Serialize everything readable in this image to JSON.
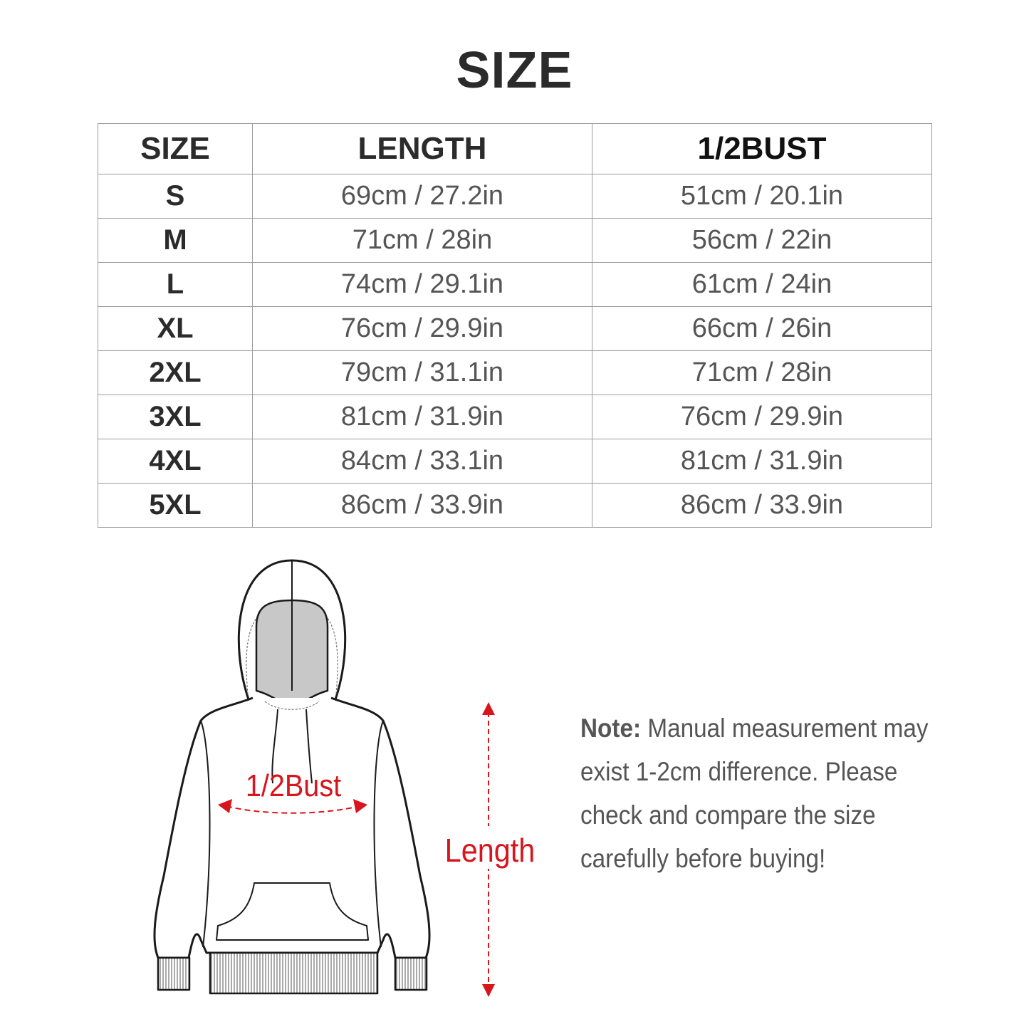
{
  "title": "SIZE",
  "table": {
    "headers": [
      "SIZE",
      "LENGTH",
      "1/2BUST"
    ],
    "rows": [
      {
        "size": "S",
        "length": "69cm / 27.2in",
        "bust": "51cm / 20.1in"
      },
      {
        "size": "M",
        "length": "71cm / 28in",
        "bust": "56cm / 22in"
      },
      {
        "size": "L",
        "length": "74cm / 29.1in",
        "bust": "61cm / 24in"
      },
      {
        "size": "XL",
        "length": "76cm / 29.9in",
        "bust": "66cm / 26in"
      },
      {
        "size": "2XL",
        "length": "79cm / 31.1in",
        "bust": "71cm / 28in"
      },
      {
        "size": "3XL",
        "length": "81cm / 31.9in",
        "bust": "76cm / 29.9in"
      },
      {
        "size": "4XL",
        "length": "84cm / 33.1in",
        "bust": "81cm / 31.9in"
      },
      {
        "size": "5XL",
        "length": "86cm / 33.9in",
        "bust": "86cm / 33.9in"
      }
    ]
  },
  "diagram": {
    "bust_label": "1/2Bust",
    "length_label": "Length",
    "accent_color": "#d8141c"
  },
  "note": {
    "label": "Note:",
    "text": "Manual measurement may exist 1-2cm difference. Please check and compare the size carefully before buying!"
  }
}
